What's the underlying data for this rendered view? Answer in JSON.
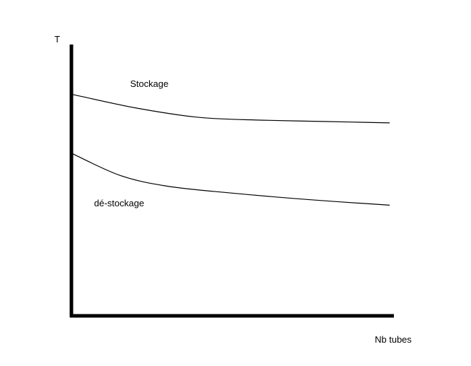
{
  "chart_data": {
    "type": "line",
    "title": "",
    "xlabel": "Nb tubes",
    "ylabel": "T",
    "xlim": [
      0,
      100
    ],
    "ylim": [
      0,
      100
    ],
    "grid": false,
    "ticks": false,
    "series": [
      {
        "name": "Stockage",
        "x": [
          0,
          20,
          40,
          60,
          80,
          100
        ],
        "y": [
          82,
          77,
          73.5,
          72.5,
          72,
          71.5
        ]
      },
      {
        "name": "dé-stockage",
        "x": [
          0,
          15,
          30,
          50,
          75,
          100
        ],
        "y": [
          60,
          52,
          48,
          45.5,
          43,
          41
        ]
      }
    ],
    "colors": {
      "axis": "#000000",
      "line": "#000000"
    }
  }
}
